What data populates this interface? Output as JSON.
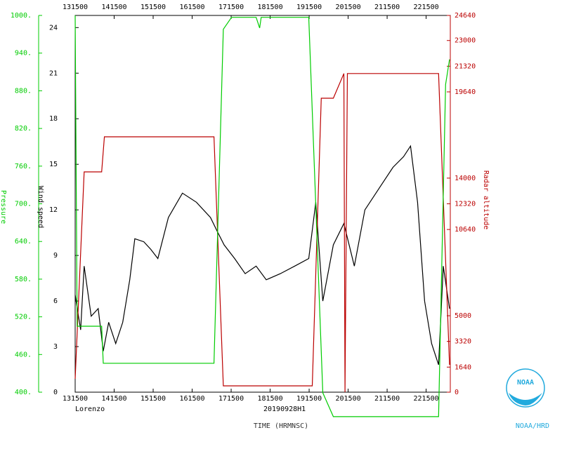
{
  "chart_data": {
    "type": "line",
    "caption_left": "Lorenzo",
    "caption_center": "20190928H1",
    "xlabel": "TIME (HRMNSC)",
    "ylabel": "Wind speed",
    "y2label": "Radar altitude",
    "y3label": "Pressure",
    "logo_text": "NOAA",
    "org": "NOAA/HRD",
    "xlim": [
      13.25,
      22.87
    ],
    "xticks": [
      {
        "value": 13.25,
        "label": "131500"
      },
      {
        "value": 14.25,
        "label": "141500"
      },
      {
        "value": 15.25,
        "label": "151500"
      },
      {
        "value": 16.25,
        "label": "161500"
      },
      {
        "value": 17.25,
        "label": "171500"
      },
      {
        "value": 18.25,
        "label": "181500"
      },
      {
        "value": 19.25,
        "label": "191500"
      },
      {
        "value": 20.25,
        "label": "201500"
      },
      {
        "value": 21.25,
        "label": "211500"
      },
      {
        "value": 22.25,
        "label": "221500"
      }
    ],
    "ylim": [
      0,
      24.8
    ],
    "yticks": [
      0,
      3,
      6,
      9,
      12,
      15,
      18,
      21,
      24
    ],
    "y2lim": [
      0,
      24640
    ],
    "y2ticks": [
      0,
      1640,
      3320,
      5000,
      10640,
      12320,
      14000,
      19640,
      21320,
      23000,
      24640
    ],
    "y3lim": [
      400,
      1000
    ],
    "y3ticks": [
      {
        "value": 400,
        "label": "400."
      },
      {
        "value": 460,
        "label": "460."
      },
      {
        "value": 520,
        "label": "520."
      },
      {
        "value": 580,
        "label": "580."
      },
      {
        "value": 640,
        "label": "640."
      },
      {
        "value": 700,
        "label": "700."
      },
      {
        "value": 760,
        "label": "760."
      },
      {
        "value": 820,
        "label": "820."
      },
      {
        "value": 880,
        "label": "880."
      },
      {
        "value": 940,
        "label": "940."
      },
      {
        "value": 1000,
        "label": "1000."
      }
    ],
    "series": [
      {
        "name": "Wind speed",
        "color": "#000000",
        "axis": "y",
        "x": [
          13.25,
          13.39,
          13.48,
          13.66,
          13.84,
          13.97,
          14.11,
          14.29,
          14.47,
          14.65,
          14.78,
          15.01,
          15.19,
          15.37,
          15.64,
          16.0,
          16.36,
          16.72,
          16.89,
          17.07,
          17.34,
          17.61,
          17.89,
          18.15,
          18.51,
          18.88,
          19.24,
          19.42,
          19.6,
          19.87,
          20.14,
          20.41,
          20.68,
          21.04,
          21.4,
          21.67,
          21.85,
          22.03,
          22.21,
          22.39,
          22.57,
          22.69,
          22.85
        ],
        "values": [
          6.4,
          4.1,
          8.3,
          5.0,
          5.5,
          2.7,
          4.6,
          3.2,
          4.6,
          7.4,
          10.1,
          9.9,
          9.4,
          8.8,
          11.5,
          13.1,
          12.5,
          11.5,
          10.6,
          9.7,
          8.8,
          7.8,
          8.3,
          7.4,
          7.8,
          8.3,
          8.8,
          12.5,
          6.0,
          9.7,
          11.1,
          8.3,
          12.0,
          13.4,
          14.8,
          15.5,
          16.2,
          12.5,
          6.0,
          3.2,
          1.8,
          8.3,
          5.5
        ]
      },
      {
        "name": "Radar altitude",
        "color": "#bb0000",
        "axis": "y2",
        "x": [
          13.25,
          13.48,
          13.93,
          14.0,
          16.81,
          17.05,
          19.33,
          19.56,
          19.87,
          20.14,
          20.17,
          20.23,
          22.57,
          22.85
        ],
        "values": [
          872,
          14408,
          14408,
          16702,
          16702,
          413,
          413,
          19226,
          19226,
          20839,
          0,
          20839,
          20839,
          1790
        ]
      },
      {
        "name": "Pressure",
        "color": "#00cc00",
        "axis": "y3",
        "x": [
          13.25,
          13.3,
          13.93,
          13.97,
          16.81,
          17.05,
          17.26,
          17.89,
          17.98,
          18.02,
          19.24,
          19.6,
          19.87,
          22.57,
          22.75,
          22.85
        ],
        "values": [
          1000,
          505,
          505,
          446,
          446,
          978,
          997,
          997,
          980,
          997,
          997,
          399,
          361,
          361,
          890,
          930
        ]
      }
    ]
  }
}
